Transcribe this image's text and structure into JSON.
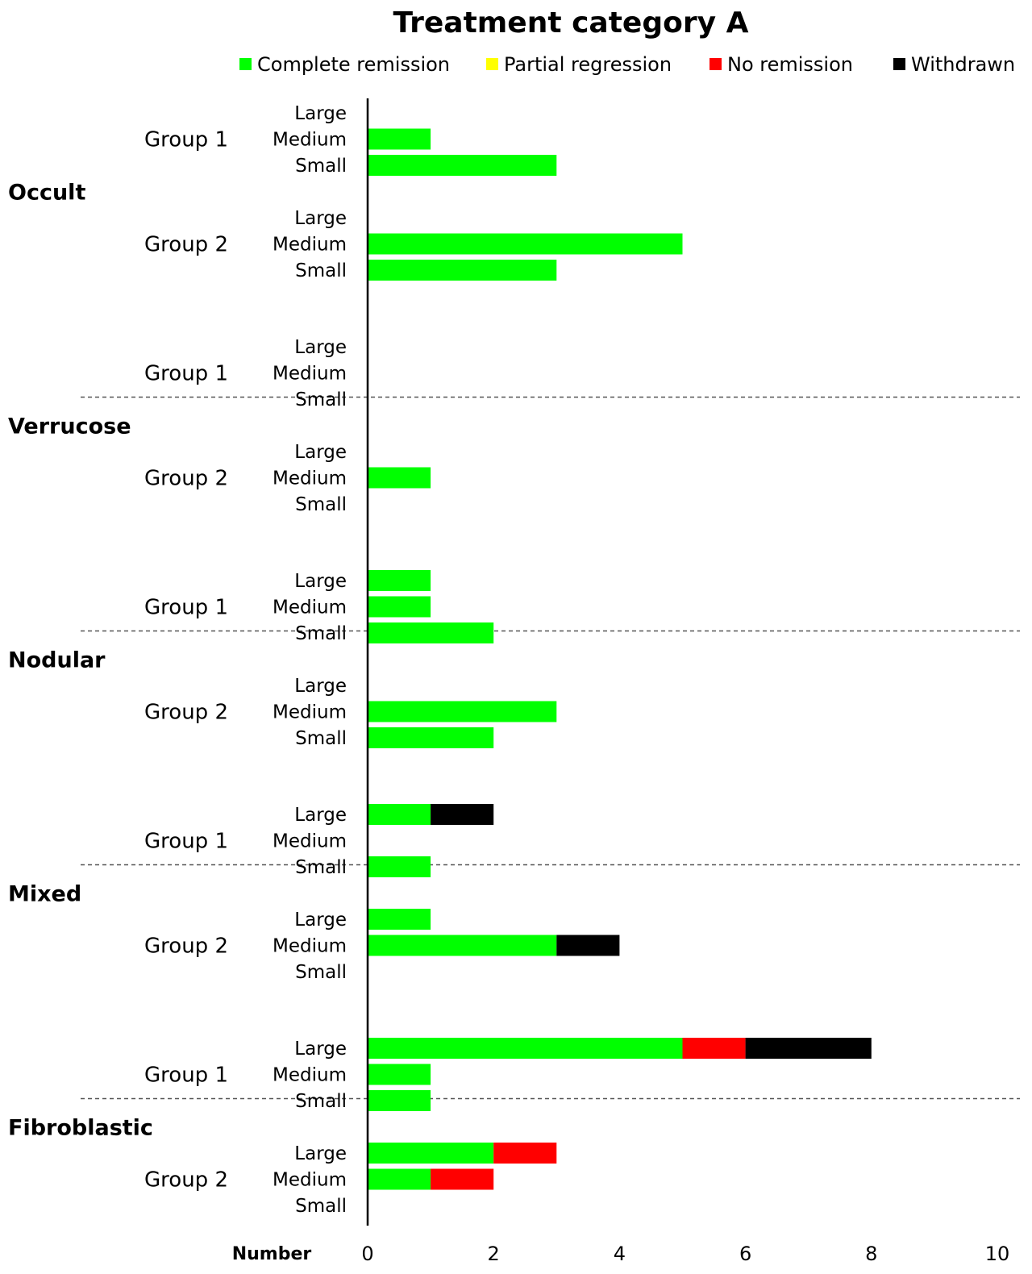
{
  "chart_data": {
    "type": "bar",
    "orientation": "horizontal",
    "stacked": true,
    "title": "Treatment category A",
    "xlabel": "Number",
    "xlim": [
      0,
      10
    ],
    "xticks": [
      0,
      2,
      4,
      6,
      8,
      10
    ],
    "legend_position": "top",
    "series": [
      {
        "name": "Complete remission",
        "color": "#00ff00"
      },
      {
        "name": "Partial regression",
        "color": "#ffff00"
      },
      {
        "name": "No remission",
        "color": "#ff0000"
      },
      {
        "name": "Withdrawn",
        "color": "#000000"
      }
    ],
    "categories": [
      {
        "name": "Occult",
        "groups": [
          {
            "name": "Group 1",
            "sizes": [
              {
                "size": "Large",
                "values": [
                  0,
                  0,
                  0,
                  0
                ]
              },
              {
                "size": "Medium",
                "values": [
                  1,
                  0,
                  0,
                  0
                ]
              },
              {
                "size": "Small",
                "values": [
                  3,
                  0,
                  0,
                  0
                ]
              }
            ]
          },
          {
            "name": "Group 2",
            "sizes": [
              {
                "size": "Large",
                "values": [
                  0,
                  0,
                  0,
                  0
                ]
              },
              {
                "size": "Medium",
                "values": [
                  5,
                  0,
                  0,
                  0
                ]
              },
              {
                "size": "Small",
                "values": [
                  3,
                  0,
                  0,
                  0
                ]
              }
            ]
          }
        ]
      },
      {
        "name": "Verrucose",
        "groups": [
          {
            "name": "Group 1",
            "sizes": [
              {
                "size": "Large",
                "values": [
                  0,
                  0,
                  0,
                  0
                ]
              },
              {
                "size": "Medium",
                "values": [
                  0,
                  0,
                  0,
                  0
                ]
              },
              {
                "size": "Small",
                "values": [
                  0,
                  0,
                  0,
                  0
                ]
              }
            ]
          },
          {
            "name": "Group 2",
            "sizes": [
              {
                "size": "Large",
                "values": [
                  0,
                  0,
                  0,
                  0
                ]
              },
              {
                "size": "Medium",
                "values": [
                  1,
                  0,
                  0,
                  0
                ]
              },
              {
                "size": "Small",
                "values": [
                  0,
                  0,
                  0,
                  0
                ]
              }
            ]
          }
        ]
      },
      {
        "name": "Nodular",
        "groups": [
          {
            "name": "Group 1",
            "sizes": [
              {
                "size": "Large",
                "values": [
                  1,
                  0,
                  0,
                  0
                ]
              },
              {
                "size": "Medium",
                "values": [
                  1,
                  0,
                  0,
                  0
                ]
              },
              {
                "size": "Small",
                "values": [
                  2,
                  0,
                  0,
                  0
                ]
              }
            ]
          },
          {
            "name": "Group 2",
            "sizes": [
              {
                "size": "Large",
                "values": [
                  0,
                  0,
                  0,
                  0
                ]
              },
              {
                "size": "Medium",
                "values": [
                  3,
                  0,
                  0,
                  0
                ]
              },
              {
                "size": "Small",
                "values": [
                  2,
                  0,
                  0,
                  0
                ]
              }
            ]
          }
        ]
      },
      {
        "name": "Mixed",
        "groups": [
          {
            "name": "Group 1",
            "sizes": [
              {
                "size": "Large",
                "values": [
                  1,
                  0,
                  0,
                  1
                ]
              },
              {
                "size": "Medium",
                "values": [
                  0,
                  0,
                  0,
                  0
                ]
              },
              {
                "size": "Small",
                "values": [
                  1,
                  0,
                  0,
                  0
                ]
              }
            ]
          },
          {
            "name": "Group 2",
            "sizes": [
              {
                "size": "Large",
                "values": [
                  1,
                  0,
                  0,
                  0
                ]
              },
              {
                "size": "Medium",
                "values": [
                  3,
                  0,
                  0,
                  1
                ]
              },
              {
                "size": "Small",
                "values": [
                  0,
                  0,
                  0,
                  0
                ]
              }
            ]
          }
        ]
      },
      {
        "name": "Fibroblastic",
        "groups": [
          {
            "name": "Group 1",
            "sizes": [
              {
                "size": "Large",
                "values": [
                  5,
                  0,
                  1,
                  2
                ]
              },
              {
                "size": "Medium",
                "values": [
                  1,
                  0,
                  0,
                  0
                ]
              },
              {
                "size": "Small",
                "values": [
                  1,
                  0,
                  0,
                  0
                ]
              }
            ]
          },
          {
            "name": "Group 2",
            "sizes": [
              {
                "size": "Large",
                "values": [
                  2,
                  0,
                  1,
                  0
                ]
              },
              {
                "size": "Medium",
                "values": [
                  1,
                  0,
                  1,
                  0
                ]
              },
              {
                "size": "Small",
                "values": [
                  0,
                  0,
                  0,
                  0
                ]
              }
            ]
          }
        ]
      }
    ]
  }
}
